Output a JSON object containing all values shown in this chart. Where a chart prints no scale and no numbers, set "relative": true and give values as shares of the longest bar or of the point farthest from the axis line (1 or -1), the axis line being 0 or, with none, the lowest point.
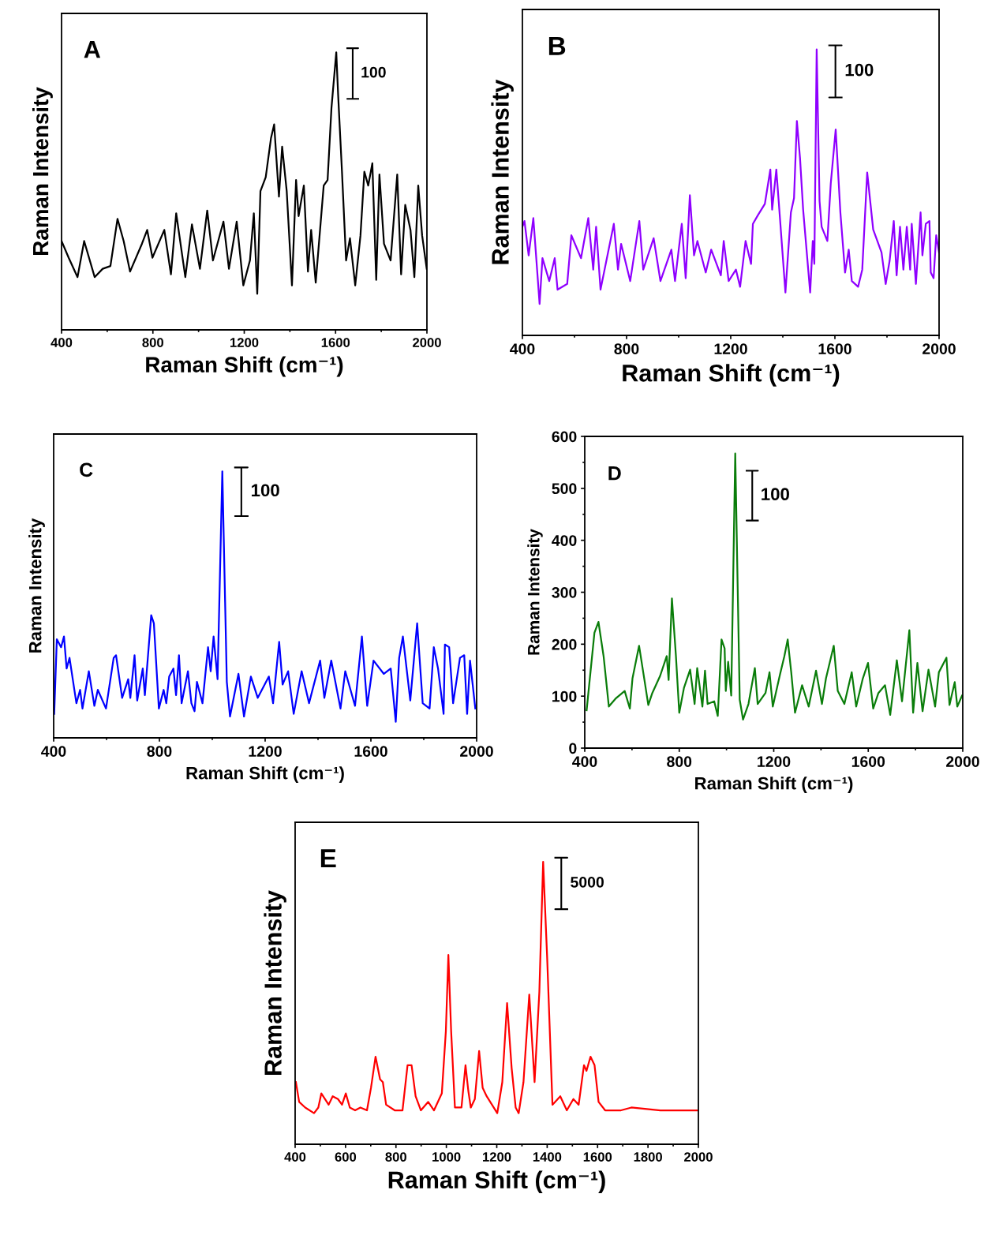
{
  "chart_data": [
    {
      "type": "line",
      "relative": true,
      "tick_labels": "x",
      "annotations": [
        "A",
        "100"
      ],
      "xlabel": "Raman Shift (cm⁻¹)",
      "ylabel": "Raman Intensity",
      "xlim": [
        400,
        2000
      ],
      "xticks": [
        400,
        800,
        1200,
        1600,
        2000
      ],
      "series": [
        {
          "color": "#000000",
          "x": [
            400,
            431,
            470,
            499,
            545,
            580,
            614,
            645,
            672,
            700,
            752,
            775,
            798,
            850,
            879,
            902,
            942,
            971,
            1006,
            1038,
            1063,
            1109,
            1133,
            1167,
            1196,
            1225,
            1242,
            1257,
            1271,
            1294,
            1317,
            1331,
            1352,
            1366,
            1386,
            1409,
            1427,
            1438,
            1461,
            1479,
            1493,
            1513,
            1548,
            1565,
            1582,
            1603,
            1611,
            1628,
            1646,
            1663,
            1686,
            1709,
            1726,
            1743,
            1761,
            1778,
            1792,
            1812,
            1841,
            1870,
            1887,
            1905,
            1928,
            1945,
            1962,
            1979,
            1999
          ],
          "values": [
            0.32,
            0.26,
            0.19,
            0.32,
            0.19,
            0.22,
            0.23,
            0.4,
            0.32,
            0.21,
            0.31,
            0.36,
            0.26,
            0.36,
            0.2,
            0.42,
            0.19,
            0.38,
            0.22,
            0.43,
            0.25,
            0.39,
            0.22,
            0.39,
            0.16,
            0.25,
            0.42,
            0.13,
            0.5,
            0.55,
            0.69,
            0.74,
            0.48,
            0.66,
            0.5,
            0.16,
            0.54,
            0.41,
            0.52,
            0.21,
            0.36,
            0.17,
            0.52,
            0.54,
            0.8,
            1.0,
            0.85,
            0.57,
            0.25,
            0.33,
            0.16,
            0.34,
            0.57,
            0.52,
            0.6,
            0.18,
            0.56,
            0.31,
            0.25,
            0.56,
            0.2,
            0.45,
            0.36,
            0.19,
            0.52,
            0.34,
            0.22
          ]
        }
      ]
    },
    {
      "type": "line",
      "relative": true,
      "tick_labels": "x",
      "annotations": [
        "B",
        "100"
      ],
      "xlabel": "Raman Shift (cm⁻¹)",
      "ylabel": "Raman Intensity",
      "xlim": [
        400,
        2000
      ],
      "xticks": [
        400,
        800,
        1200,
        1600,
        2000
      ],
      "series": [
        {
          "color": "#8f00ff",
          "x": [
            400,
            408,
            424,
            442,
            466,
            477,
            503,
            524,
            535,
            572,
            588,
            625,
            653,
            672,
            683,
            700,
            751,
            767,
            779,
            814,
            849,
            864,
            904,
            930,
            972,
            986,
            1012,
            1027,
            1043,
            1059,
            1072,
            1104,
            1125,
            1162,
            1173,
            1192,
            1220,
            1236,
            1257,
            1278,
            1285,
            1304,
            1331,
            1352,
            1359,
            1375,
            1389,
            1410,
            1431,
            1443,
            1454,
            1466,
            1478,
            1505,
            1515,
            1521,
            1530,
            1541,
            1549,
            1571,
            1584,
            1603,
            1621,
            1639,
            1653,
            1665,
            1689,
            1705,
            1724,
            1747,
            1779,
            1795,
            1810,
            1826,
            1837,
            1850,
            1863,
            1876,
            1889,
            1895,
            1911,
            1929,
            1936,
            1949,
            1963,
            1968,
            1979,
            1989,
            2000
          ],
          "values": [
            0.38,
            0.4,
            0.28,
            0.41,
            0.11,
            0.27,
            0.19,
            0.27,
            0.16,
            0.18,
            0.35,
            0.27,
            0.41,
            0.23,
            0.38,
            0.16,
            0.39,
            0.23,
            0.32,
            0.19,
            0.4,
            0.23,
            0.34,
            0.19,
            0.3,
            0.19,
            0.39,
            0.2,
            0.49,
            0.28,
            0.33,
            0.22,
            0.3,
            0.21,
            0.33,
            0.19,
            0.23,
            0.17,
            0.33,
            0.25,
            0.39,
            0.42,
            0.46,
            0.58,
            0.44,
            0.58,
            0.41,
            0.15,
            0.43,
            0.48,
            0.75,
            0.62,
            0.44,
            0.15,
            0.33,
            0.25,
            1.0,
            0.47,
            0.38,
            0.33,
            0.53,
            0.72,
            0.43,
            0.22,
            0.3,
            0.19,
            0.17,
            0.23,
            0.57,
            0.37,
            0.29,
            0.18,
            0.26,
            0.4,
            0.21,
            0.38,
            0.23,
            0.38,
            0.23,
            0.39,
            0.18,
            0.43,
            0.28,
            0.39,
            0.4,
            0.22,
            0.2,
            0.35,
            0.29
          ]
        }
      ]
    },
    {
      "type": "line",
      "relative": true,
      "tick_labels": "x",
      "annotations": [
        "C",
        "100"
      ],
      "xlabel": "Raman Shift (cm⁻¹)",
      "ylabel": "Raman Intensity",
      "xlim": [
        400,
        2000
      ],
      "xticks": [
        400,
        800,
        1200,
        1600,
        2000
      ],
      "series": [
        {
          "color": "#0000ff",
          "x": [
            402,
            412,
            428,
            439,
            449,
            460,
            486,
            500,
            509,
            533,
            554,
            567,
            598,
            627,
            636,
            659,
            682,
            690,
            706,
            716,
            737,
            745,
            769,
            779,
            798,
            816,
            826,
            837,
            853,
            863,
            874,
            884,
            908,
            921,
            933,
            942,
            963,
            984,
            994,
            1005,
            1020,
            1038,
            1055,
            1067,
            1099,
            1120,
            1146,
            1172,
            1214,
            1230,
            1253,
            1266,
            1287,
            1308,
            1338,
            1366,
            1408,
            1424,
            1450,
            1485,
            1503,
            1540,
            1566,
            1586,
            1610,
            1649,
            1675,
            1694,
            1707,
            1721,
            1749,
            1775,
            1796,
            1822,
            1838,
            1854,
            1875,
            1880,
            1896,
            1911,
            1937,
            1953,
            1964,
            1975,
            1995
          ],
          "values": [
            0.09,
            0.37,
            0.34,
            0.38,
            0.26,
            0.3,
            0.13,
            0.18,
            0.11,
            0.25,
            0.12,
            0.18,
            0.11,
            0.3,
            0.31,
            0.15,
            0.22,
            0.15,
            0.31,
            0.14,
            0.26,
            0.16,
            0.46,
            0.43,
            0.11,
            0.18,
            0.13,
            0.23,
            0.26,
            0.16,
            0.31,
            0.13,
            0.25,
            0.13,
            0.1,
            0.21,
            0.13,
            0.34,
            0.25,
            0.38,
            0.22,
            1.0,
            0.21,
            0.08,
            0.24,
            0.08,
            0.23,
            0.15,
            0.23,
            0.13,
            0.36,
            0.2,
            0.25,
            0.09,
            0.25,
            0.13,
            0.29,
            0.15,
            0.29,
            0.11,
            0.25,
            0.12,
            0.38,
            0.12,
            0.29,
            0.24,
            0.26,
            0.06,
            0.3,
            0.38,
            0.14,
            0.43,
            0.13,
            0.11,
            0.34,
            0.26,
            0.09,
            0.35,
            0.34,
            0.13,
            0.3,
            0.31,
            0.09,
            0.29,
            0.11
          ]
        }
      ]
    },
    {
      "type": "line",
      "annotations": [
        "D",
        "100"
      ],
      "xlabel": "Raman Shift (cm⁻¹)",
      "ylabel": "Raman Intensity",
      "xlim": [
        400,
        2000
      ],
      "xticks": [
        400,
        800,
        1200,
        1600,
        2000
      ],
      "ylim": [
        0,
        600
      ],
      "yticks": [
        0,
        100,
        200,
        300,
        400,
        500,
        600
      ],
      "series": [
        {
          "color": "#0a7d0a",
          "x": [
            408,
            441,
            458,
            480,
            502,
            530,
            569,
            591,
            602,
            630,
            652,
            669,
            686,
            719,
            747,
            755,
            769,
            786,
            800,
            820,
            846,
            865,
            876,
            898,
            909,
            920,
            948,
            963,
            979,
            992,
            997,
            1007,
            1020,
            1037,
            1056,
            1070,
            1093,
            1120,
            1132,
            1165,
            1182,
            1196,
            1226,
            1245,
            1259,
            1274,
            1290,
            1320,
            1348,
            1379,
            1404,
            1421,
            1454,
            1471,
            1499,
            1530,
            1549,
            1577,
            1599,
            1621,
            1643,
            1671,
            1693,
            1721,
            1743,
            1774,
            1790,
            1808,
            1830,
            1855,
            1883,
            1899,
            1931,
            1944,
            1966,
            1977,
            1997
          ],
          "values": [
            73,
            222,
            243,
            176,
            80,
            95,
            110,
            76,
            134,
            197,
            133,
            83,
            106,
            139,
            177,
            131,
            288,
            177,
            68,
            116,
            151,
            85,
            154,
            80,
            149,
            85,
            90,
            62,
            209,
            192,
            110,
            166,
            101,
            567,
            93,
            55,
            85,
            154,
            85,
            106,
            146,
            80,
            141,
            177,
            209,
            146,
            68,
            121,
            80,
            149,
            85,
            134,
            197,
            110,
            85,
            146,
            80,
            134,
            164,
            76,
            106,
            121,
            64,
            169,
            90,
            227,
            68,
            164,
            71,
            151,
            80,
            146,
            174,
            83,
            127,
            80,
            101
          ]
        }
      ]
    },
    {
      "type": "line",
      "relative": true,
      "tick_labels": "x",
      "annotations": [
        "E",
        "5000"
      ],
      "xlabel": "Raman Shift (cm⁻¹)",
      "ylabel": "Raman Intensity",
      "xlim": [
        400,
        2000
      ],
      "xticks": [
        400,
        600,
        800,
        1000,
        1200,
        1400,
        1600,
        1800,
        2000
      ],
      "series": [
        {
          "color": "#ff0000",
          "x": [
            403,
            416,
            440,
            475,
            492,
            504,
            533,
            549,
            570,
            586,
            601,
            617,
            638,
            659,
            685,
            701,
            719,
            737,
            748,
            761,
            795,
            826,
            846,
            862,
            878,
            899,
            928,
            951,
            982,
            998,
            1008,
            1019,
            1034,
            1060,
            1076,
            1087,
            1097,
            1113,
            1130,
            1144,
            1160,
            1181,
            1202,
            1222,
            1241,
            1259,
            1275,
            1287,
            1306,
            1329,
            1350,
            1369,
            1384,
            1400,
            1421,
            1452,
            1478,
            1504,
            1525,
            1546,
            1556,
            1572,
            1588,
            1604,
            1630,
            1693,
            1734,
            1849,
            1995
          ],
          "values": [
            0.22,
            0.15,
            0.13,
            0.11,
            0.13,
            0.18,
            0.14,
            0.17,
            0.16,
            0.14,
            0.18,
            0.13,
            0.12,
            0.13,
            0.12,
            0.2,
            0.31,
            0.23,
            0.22,
            0.14,
            0.12,
            0.12,
            0.28,
            0.28,
            0.17,
            0.12,
            0.15,
            0.12,
            0.18,
            0.4,
            0.67,
            0.4,
            0.13,
            0.13,
            0.28,
            0.19,
            0.13,
            0.16,
            0.33,
            0.2,
            0.17,
            0.14,
            0.11,
            0.22,
            0.5,
            0.27,
            0.13,
            0.11,
            0.22,
            0.53,
            0.22,
            0.54,
            1.0,
            0.66,
            0.14,
            0.17,
            0.12,
            0.16,
            0.14,
            0.28,
            0.26,
            0.31,
            0.28,
            0.15,
            0.12,
            0.12,
            0.13,
            0.12,
            0.12
          ]
        }
      ]
    }
  ]
}
